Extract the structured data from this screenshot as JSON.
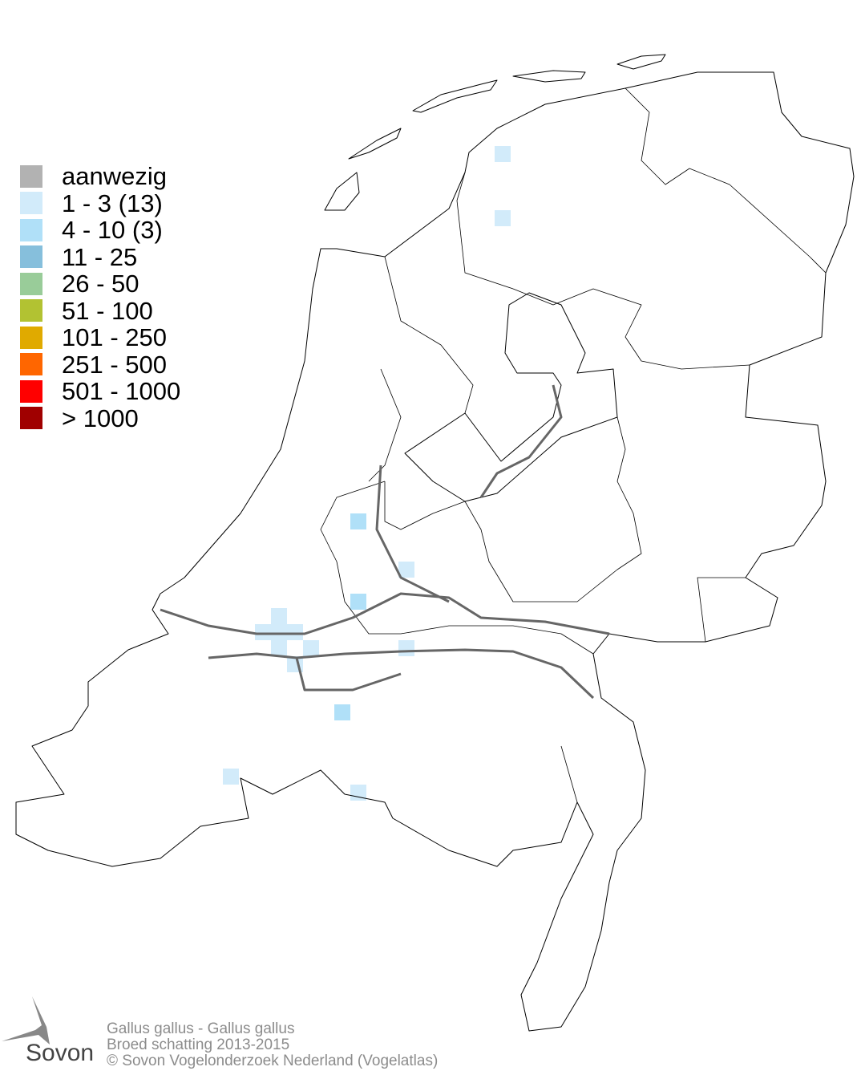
{
  "legend": [
    {
      "label": "aanwezig",
      "color": "#b2b2b2"
    },
    {
      "label": "1 - 3 (13)",
      "color": "#d2ebfa"
    },
    {
      "label": "4 - 10 (3)",
      "color": "#b0e0f8"
    },
    {
      "label": "11 - 25",
      "color": "#86bfdc"
    },
    {
      "label": "26 - 50",
      "color": "#99cc99"
    },
    {
      "label": "51 - 100",
      "color": "#b2c232"
    },
    {
      "label": "101 - 250",
      "color": "#e0aa00"
    },
    {
      "label": "251 - 500",
      "color": "#ff6600"
    },
    {
      "label": "501 - 1000",
      "color": "#ff0000"
    },
    {
      "label": "> 1000",
      "color": "#a00000"
    }
  ],
  "footer": {
    "species": "Gallus gallus - Gallus gallus",
    "subtitle": "Broed schatting 2013-2015",
    "copyright": "© Sovon Vogelonderzoek Nederland (Vogelatlas)"
  },
  "logo": {
    "text": "Sovon"
  },
  "cells": {
    "class_1_3": [
      [
        617,
        182
      ],
      [
        617,
        262
      ],
      [
        497,
        700
      ],
      [
        338,
        758
      ],
      [
        318,
        778
      ],
      [
        338,
        778
      ],
      [
        358,
        778
      ],
      [
        338,
        798
      ],
      [
        378,
        798
      ],
      [
        358,
        818
      ],
      [
        497,
        798
      ],
      [
        278,
        958
      ],
      [
        437,
        978
      ]
    ],
    "class_4_10": [
      [
        437,
        640
      ],
      [
        437,
        740
      ],
      [
        417,
        878
      ]
    ]
  }
}
